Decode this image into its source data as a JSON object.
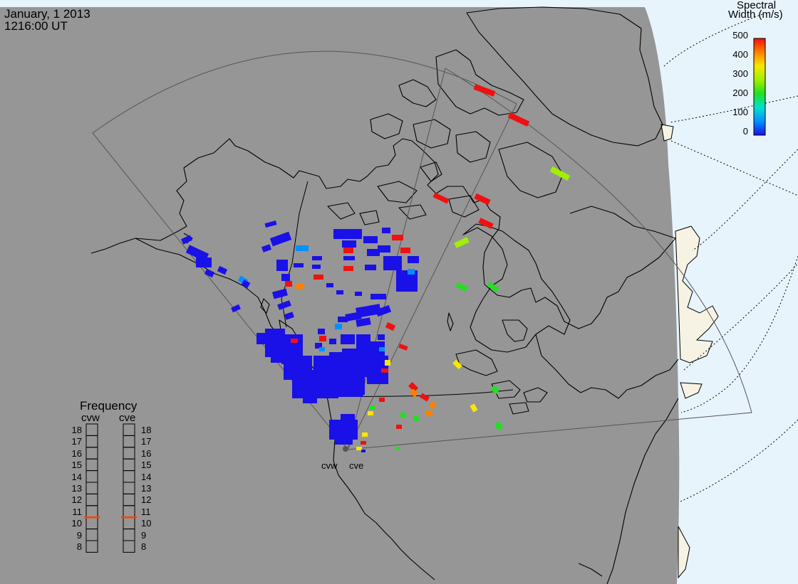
{
  "header": {
    "date": "January, 1 2013",
    "time": "1216:00 UT"
  },
  "colorbar": {
    "title_line1": "Spectral",
    "title_line2": "Width (m/s)",
    "ticks": [
      "500",
      "400",
      "300",
      "200",
      "100",
      "0"
    ],
    "gradient": [
      "#1a10e8",
      "#0090ff",
      "#00e0d0",
      "#20e020",
      "#a0f000",
      "#f8e800",
      "#ff8000",
      "#f01010"
    ],
    "range": [
      0,
      500
    ]
  },
  "frequency": {
    "title": "Frequency",
    "radars": [
      "cvw",
      "cve"
    ],
    "ticks": [
      "18",
      "17",
      "16",
      "15",
      "14",
      "13",
      "12",
      "11",
      "10",
      "9",
      "8"
    ],
    "marker_mhz": [
      10.5,
      10.5
    ],
    "marker_color": "#ff4000"
  },
  "radars": {
    "labels": [
      "cvw",
      "cve"
    ]
  },
  "map": {
    "colors": {
      "background": "#ffffff",
      "night_side": "#969696",
      "day_ocean": "#e8f4fc",
      "day_land": "#f6f2e4",
      "coast": "#000000",
      "fov": "#555555",
      "gridlines": "#000000"
    }
  }
}
